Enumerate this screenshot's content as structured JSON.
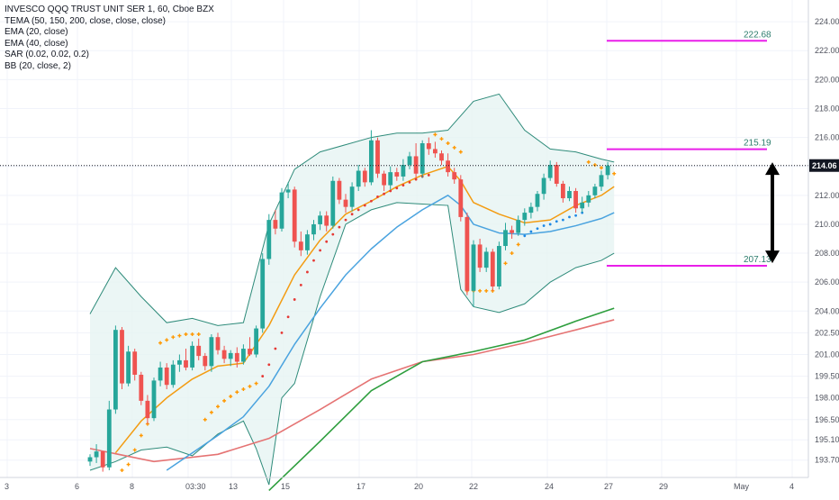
{
  "legend": {
    "symbol": "INVESCO QQQ TRUST UNIT SER 1, 60, Cboe BZX",
    "indicators": [
      "TEMA (50, 150, 200, close, close, close)",
      "EMA (20, close)",
      "EMA (40, close)",
      "SAR (0.02, 0.02, 0.2)",
      "BB (20, close, 2)"
    ]
  },
  "colors": {
    "up_candle": "#26a69a",
    "down_candle": "#ef5350",
    "bb_band": "#2e8b7a",
    "bb_fill": "#e6f4f2",
    "ema20": "#f39c12",
    "ema40": "#4aa3df",
    "tema_green": "#2e9e3e",
    "tema_red": "#e57373",
    "sar_above": "#ff9800",
    "sar_below_red": "#e53935",
    "sar_below_blue": "#1e88e5",
    "level_line": "#e91ee9",
    "price_tag": "#131722",
    "arrow": "#000000"
  },
  "chart_data": {
    "type": "candlestick",
    "title": "INVESCO QQQ TRUST UNIT SER 1, 60, Cboe BZX",
    "ylim": [
      192.5,
      225.5
    ],
    "y_ticks": [
      "224.00",
      "222.00",
      "220.00",
      "218.00",
      "216.00",
      "214.00",
      "212.00",
      "210.00",
      "208.00",
      "206.00",
      "204.00",
      "202.50",
      "201.00",
      "199.50",
      "198.00",
      "196.50",
      "195.10",
      "193.70"
    ],
    "x_ticks": [
      "3",
      "6",
      "8",
      "03:30",
      "13",
      "15",
      "17",
      "20",
      "22",
      "24",
      "27",
      "29",
      "May",
      "4"
    ],
    "last_price": "214.06",
    "horizontal_levels": [
      {
        "label": "222.68",
        "value": 222.68
      },
      {
        "label": "215.19",
        "value": 215.19
      },
      {
        "label": "207.13",
        "value": 207.13
      }
    ],
    "candles": [
      [
        193.6,
        194.1,
        193.3,
        193.9
      ],
      [
        193.9,
        194.8,
        193.5,
        194.3
      ],
      [
        194.3,
        194.3,
        192.9,
        193.2
      ],
      [
        193.2,
        197.8,
        193.0,
        197.2
      ],
      [
        197.2,
        203.0,
        196.9,
        202.7
      ],
      [
        202.7,
        202.9,
        198.6,
        199.0
      ],
      [
        199.0,
        201.6,
        198.8,
        201.2
      ],
      [
        201.2,
        201.4,
        199.2,
        199.6
      ],
      [
        199.6,
        199.8,
        197.5,
        197.8
      ],
      [
        197.8,
        198.2,
        196.2,
        196.6
      ],
      [
        196.6,
        199.4,
        196.4,
        199.2
      ],
      [
        199.2,
        200.5,
        198.8,
        200.1
      ],
      [
        200.1,
        200.4,
        198.6,
        198.9
      ],
      [
        198.9,
        200.6,
        198.7,
        200.3
      ],
      [
        200.3,
        201.0,
        199.8,
        200.6
      ],
      [
        200.6,
        201.4,
        199.9,
        200.1
      ],
      [
        200.1,
        201.9,
        199.9,
        201.6
      ],
      [
        201.6,
        202.1,
        200.6,
        200.9
      ],
      [
        200.9,
        201.1,
        199.9,
        200.2
      ],
      [
        200.2,
        202.4,
        199.8,
        202.2
      ],
      [
        202.2,
        202.5,
        201.0,
        201.3
      ],
      [
        201.3,
        201.6,
        200.4,
        200.7
      ],
      [
        200.7,
        201.3,
        200.2,
        201.1
      ],
      [
        201.1,
        201.5,
        200.1,
        200.5
      ],
      [
        200.5,
        201.7,
        200.3,
        201.4
      ],
      [
        201.4,
        202.2,
        200.9,
        201.0
      ],
      [
        201.0,
        203.0,
        200.8,
        202.8
      ],
      [
        202.8,
        208.0,
        202.5,
        207.6
      ],
      [
        207.6,
        210.7,
        207.2,
        210.3
      ],
      [
        210.3,
        211.0,
        209.3,
        209.7
      ],
      [
        209.7,
        212.5,
        209.5,
        212.2
      ],
      [
        212.2,
        212.9,
        211.8,
        212.4
      ],
      [
        212.4,
        212.6,
        208.4,
        208.8
      ],
      [
        208.8,
        209.5,
        207.8,
        208.2
      ],
      [
        208.2,
        209.6,
        207.9,
        209.3
      ],
      [
        209.3,
        210.3,
        208.9,
        210.0
      ],
      [
        210.0,
        210.9,
        209.6,
        210.6
      ],
      [
        210.6,
        210.9,
        209.5,
        209.9
      ],
      [
        209.9,
        213.3,
        209.7,
        213.0
      ],
      [
        213.0,
        213.2,
        211.4,
        211.7
      ],
      [
        211.7,
        212.1,
        210.8,
        211.2
      ],
      [
        211.2,
        212.9,
        210.9,
        212.6
      ],
      [
        212.6,
        214.1,
        212.3,
        213.7
      ],
      [
        213.7,
        213.9,
        212.6,
        212.9
      ],
      [
        212.9,
        216.5,
        212.7,
        215.8
      ],
      [
        215.8,
        216.0,
        213.2,
        213.5
      ],
      [
        213.5,
        213.7,
        212.3,
        212.7
      ],
      [
        212.7,
        214.0,
        212.4,
        213.6
      ],
      [
        213.6,
        213.9,
        213.0,
        213.3
      ],
      [
        213.3,
        214.5,
        213.0,
        214.1
      ],
      [
        214.1,
        215.0,
        213.8,
        214.7
      ],
      [
        214.7,
        215.6,
        213.2,
        213.5
      ],
      [
        213.5,
        215.8,
        213.2,
        215.6
      ],
      [
        215.6,
        216.0,
        214.8,
        215.2
      ],
      [
        215.2,
        215.7,
        214.6,
        214.9
      ],
      [
        214.9,
        215.1,
        214.1,
        214.4
      ],
      [
        214.4,
        214.9,
        213.3,
        213.6
      ],
      [
        213.6,
        213.9,
        212.8,
        213.1
      ],
      [
        213.1,
        213.4,
        210.2,
        210.5
      ],
      [
        210.5,
        210.8,
        205.1,
        205.4
      ],
      [
        205.4,
        208.9,
        204.3,
        208.6
      ],
      [
        208.6,
        209.0,
        206.7,
        207.0
      ],
      [
        207.0,
        208.4,
        206.7,
        208.1
      ],
      [
        208.1,
        208.3,
        205.4,
        205.7
      ],
      [
        205.7,
        208.8,
        205.5,
        208.5
      ],
      [
        208.5,
        210.1,
        208.2,
        209.6
      ],
      [
        209.6,
        209.9,
        209.0,
        209.4
      ],
      [
        209.4,
        210.6,
        209.2,
        210.3
      ],
      [
        210.3,
        211.1,
        209.9,
        210.8
      ],
      [
        210.8,
        211.5,
        210.4,
        211.2
      ],
      [
        211.2,
        212.3,
        210.9,
        212.1
      ],
      [
        212.1,
        213.5,
        211.7,
        213.2
      ],
      [
        213.2,
        214.4,
        213.0,
        214.1
      ],
      [
        214.1,
        214.3,
        212.6,
        212.8
      ],
      [
        212.8,
        213.0,
        211.5,
        211.8
      ],
      [
        211.8,
        212.6,
        211.6,
        212.3
      ],
      [
        212.3,
        212.5,
        210.8,
        211.1
      ],
      [
        211.1,
        211.9,
        210.8,
        211.5
      ],
      [
        211.5,
        212.3,
        211.2,
        212.0
      ],
      [
        212.0,
        212.8,
        211.8,
        212.6
      ],
      [
        212.6,
        213.7,
        212.3,
        213.4
      ],
      [
        213.4,
        214.3,
        213.1,
        214.06
      ]
    ],
    "bb_upper": [
      [
        0,
        203.8
      ],
      [
        4,
        207.0
      ],
      [
        8,
        205.0
      ],
      [
        12,
        203.2
      ],
      [
        16,
        203.5
      ],
      [
        20,
        203.0
      ],
      [
        24,
        203.2
      ],
      [
        28,
        210.0
      ],
      [
        32,
        213.8
      ],
      [
        36,
        215.0
      ],
      [
        40,
        215.5
      ],
      [
        44,
        216.0
      ],
      [
        48,
        216.3
      ],
      [
        52,
        216.3
      ],
      [
        56,
        216.5
      ],
      [
        60,
        218.5
      ],
      [
        64,
        219.0
      ],
      [
        68,
        216.5
      ],
      [
        72,
        215.2
      ],
      [
        76,
        215.0
      ],
      [
        80,
        214.5
      ],
      [
        82,
        214.3
      ]
    ],
    "bb_lower": [
      [
        0,
        193.0
      ],
      [
        4,
        193.6
      ],
      [
        8,
        194.4
      ],
      [
        12,
        194.6
      ],
      [
        16,
        194.0
      ],
      [
        20,
        195.5
      ],
      [
        24,
        196.4
      ],
      [
        26,
        194.5
      ],
      [
        28,
        192.0
      ],
      [
        30,
        198.0
      ],
      [
        32,
        199.0
      ],
      [
        36,
        205.0
      ],
      [
        40,
        210.0
      ],
      [
        44,
        211.0
      ],
      [
        48,
        211.5
      ],
      [
        52,
        211.4
      ],
      [
        56,
        211.3
      ],
      [
        58,
        205.5
      ],
      [
        60,
        204.3
      ],
      [
        64,
        203.9
      ],
      [
        68,
        204.5
      ],
      [
        72,
        206.0
      ],
      [
        76,
        207.0
      ],
      [
        80,
        207.5
      ],
      [
        82,
        208.0
      ]
    ],
    "ema20": [
      [
        4,
        194.2
      ],
      [
        8,
        196.4
      ],
      [
        12,
        198.0
      ],
      [
        16,
        199.3
      ],
      [
        20,
        200.2
      ],
      [
        24,
        200.4
      ],
      [
        28,
        203.0
      ],
      [
        32,
        206.5
      ],
      [
        36,
        208.9
      ],
      [
        40,
        210.7
      ],
      [
        44,
        211.6
      ],
      [
        48,
        212.6
      ],
      [
        52,
        213.4
      ],
      [
        56,
        214.0
      ],
      [
        58,
        213.0
      ],
      [
        60,
        211.5
      ],
      [
        64,
        210.7
      ],
      [
        68,
        210.1
      ],
      [
        72,
        210.3
      ],
      [
        76,
        211.3
      ],
      [
        80,
        212.0
      ],
      [
        82,
        212.6
      ]
    ],
    "ema40": [
      [
        12,
        193.0
      ],
      [
        16,
        194.2
      ],
      [
        20,
        195.4
      ],
      [
        24,
        196.7
      ],
      [
        28,
        198.8
      ],
      [
        32,
        201.7
      ],
      [
        36,
        204.2
      ],
      [
        40,
        206.5
      ],
      [
        44,
        208.3
      ],
      [
        48,
        209.8
      ],
      [
        52,
        211.0
      ],
      [
        56,
        212.0
      ],
      [
        58,
        211.3
      ],
      [
        60,
        210.0
      ],
      [
        64,
        209.4
      ],
      [
        68,
        209.3
      ],
      [
        72,
        209.5
      ],
      [
        76,
        209.9
      ],
      [
        80,
        210.4
      ],
      [
        82,
        210.8
      ]
    ],
    "tema_green": [
      [
        28,
        191.6
      ],
      [
        36,
        195.0
      ],
      [
        44,
        198.5
      ],
      [
        52,
        200.5
      ],
      [
        60,
        201.2
      ],
      [
        68,
        202.0
      ],
      [
        76,
        203.3
      ],
      [
        82,
        204.2
      ]
    ],
    "tema_red": [
      [
        0,
        194.5
      ],
      [
        10,
        193.6
      ],
      [
        20,
        194.1
      ],
      [
        28,
        195.2
      ],
      [
        36,
        197.2
      ],
      [
        44,
        199.3
      ],
      [
        52,
        200.5
      ],
      [
        60,
        201.0
      ],
      [
        68,
        201.8
      ],
      [
        76,
        202.7
      ],
      [
        82,
        203.4
      ]
    ],
    "sar": [
      [
        5,
        193.0,
        "a"
      ],
      [
        6,
        193.4,
        "a"
      ],
      [
        7,
        194.4,
        "a"
      ],
      [
        8,
        195.4,
        "a"
      ],
      [
        9,
        196.2,
        "a"
      ],
      [
        10,
        196.9,
        "a"
      ],
      [
        11,
        201.8,
        "a"
      ],
      [
        12,
        202.0,
        "a"
      ],
      [
        13,
        202.2,
        "a"
      ],
      [
        14,
        202.3,
        "a"
      ],
      [
        15,
        202.4,
        "a"
      ],
      [
        16,
        202.4,
        "a"
      ],
      [
        17,
        202.4,
        "a"
      ],
      [
        18,
        196.5,
        "a"
      ],
      [
        19,
        197.0,
        "a"
      ],
      [
        20,
        197.4,
        "a"
      ],
      [
        21,
        197.8,
        "a"
      ],
      [
        22,
        198.1,
        "a"
      ],
      [
        23,
        198.4,
        "a"
      ],
      [
        24,
        198.6,
        "a"
      ],
      [
        25,
        198.8,
        "a"
      ],
      [
        26,
        199.0,
        "a"
      ],
      [
        27,
        199.5,
        "r"
      ],
      [
        28,
        200.3,
        "r"
      ],
      [
        29,
        201.4,
        "r"
      ],
      [
        30,
        202.5,
        "r"
      ],
      [
        31,
        203.6,
        "r"
      ],
      [
        32,
        204.8,
        "r"
      ],
      [
        33,
        205.8,
        "r"
      ],
      [
        34,
        206.7,
        "r"
      ],
      [
        35,
        207.5,
        "r"
      ],
      [
        36,
        208.2,
        "r"
      ],
      [
        37,
        208.8,
        "r"
      ],
      [
        38,
        209.3,
        "r"
      ],
      [
        39,
        209.8,
        "r"
      ],
      [
        40,
        210.3,
        "r"
      ],
      [
        41,
        210.7,
        "r"
      ],
      [
        42,
        211.0,
        "r"
      ],
      [
        43,
        211.3,
        "r"
      ],
      [
        44,
        211.6,
        "r"
      ],
      [
        45,
        211.9,
        "r"
      ],
      [
        46,
        212.1,
        "r"
      ],
      [
        47,
        212.3,
        "r"
      ],
      [
        48,
        212.5,
        "r"
      ],
      [
        49,
        212.7,
        "r"
      ],
      [
        50,
        212.9,
        "r"
      ],
      [
        51,
        213.1,
        "r"
      ],
      [
        52,
        213.3,
        "r"
      ],
      [
        53,
        213.4,
        "r"
      ],
      [
        54,
        216.2,
        "a"
      ],
      [
        55,
        215.9,
        "a"
      ],
      [
        56,
        215.6,
        "a"
      ],
      [
        57,
        215.3,
        "a"
      ],
      [
        58,
        215.0,
        "a"
      ],
      [
        59,
        205.4,
        "a"
      ],
      [
        60,
        205.4,
        "a"
      ],
      [
        61,
        205.4,
        "a"
      ],
      [
        62,
        205.4,
        "a"
      ],
      [
        63,
        205.4,
        "a"
      ],
      [
        64,
        206.5,
        "a"
      ],
      [
        65,
        207.3,
        "a"
      ],
      [
        66,
        208.0,
        "a"
      ],
      [
        67,
        208.6,
        "a"
      ],
      [
        68,
        209.2,
        "b"
      ],
      [
        69,
        209.5,
        "b"
      ],
      [
        70,
        209.7,
        "b"
      ],
      [
        71,
        209.9,
        "b"
      ],
      [
        72,
        210.0,
        "b"
      ],
      [
        73,
        210.2,
        "b"
      ],
      [
        74,
        210.3,
        "b"
      ],
      [
        75,
        210.5,
        "b"
      ],
      [
        76,
        210.6,
        "b"
      ],
      [
        77,
        210.8,
        "b"
      ],
      [
        78,
        214.3,
        "a"
      ],
      [
        79,
        214.1,
        "a"
      ],
      [
        80,
        213.9,
        "a"
      ],
      [
        81,
        213.7,
        "a"
      ],
      [
        82,
        213.5,
        "a"
      ]
    ]
  }
}
